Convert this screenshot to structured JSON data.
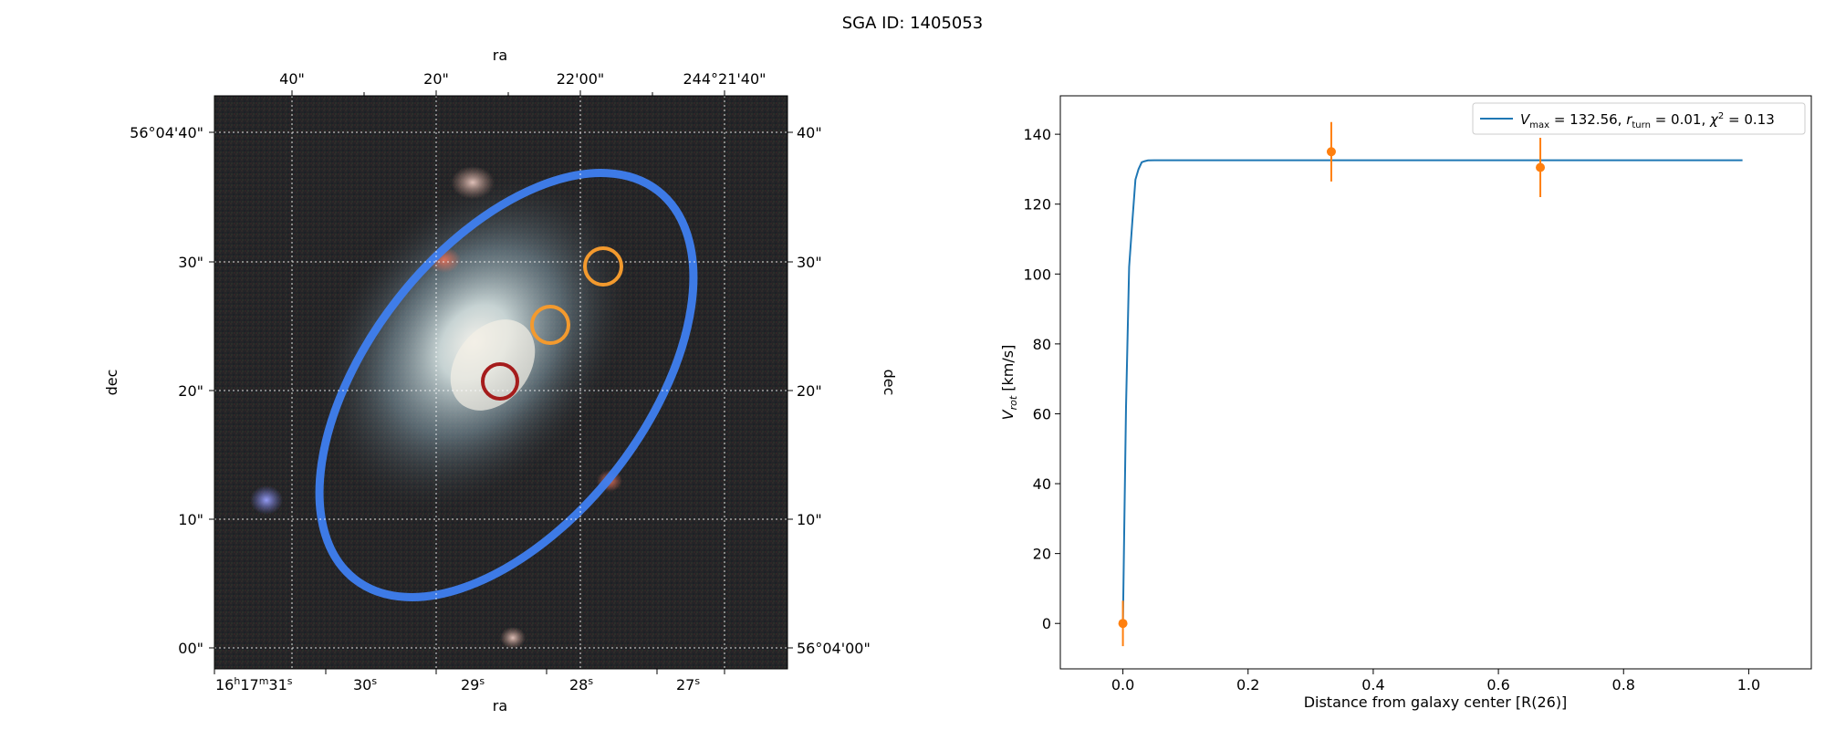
{
  "suptitle": "SGA ID: 1405053",
  "sky_panel": {
    "top_axis_label": "ra",
    "bottom_axis_label": "ra",
    "left_axis_label": "dec",
    "right_axis_label": "dec",
    "top_ticks": [
      "40\"",
      "20\"",
      "22'00\"",
      "244°21'40\""
    ],
    "bottom_ticks": [
      {
        "h": "16",
        "m": "17",
        "s": "31"
      },
      {
        "s": "30"
      },
      {
        "s": "29"
      },
      {
        "s": "28"
      },
      {
        "s": "27"
      }
    ],
    "left_ticks": [
      "56°04'40\"",
      "30\"",
      "20\"",
      "10\"",
      "00\""
    ],
    "right_ticks": [
      "40\"",
      "30\"",
      "20\"",
      "10\"",
      "56°04'00\""
    ],
    "colors": {
      "ellipse": "#3f7ff0",
      "center_circle": "#a51c1c",
      "fiber_circles": "#f39a2e"
    }
  },
  "chart_data": {
    "type": "line",
    "xlabel": "Distance from galaxy center [R(26)]",
    "ylabel": "V_rot [km/s]",
    "xlim": [
      -0.1,
      1.1
    ],
    "ylim": [
      -13,
      151
    ],
    "xticks": [
      0.0,
      0.2,
      0.4,
      0.6,
      0.8,
      1.0
    ],
    "xtick_labels": [
      "0.0",
      "0.2",
      "0.4",
      "0.6",
      "0.8",
      "1.0"
    ],
    "yticks": [
      0,
      20,
      40,
      60,
      80,
      100,
      120,
      140
    ],
    "ytick_labels": [
      "0",
      "20",
      "40",
      "60",
      "80",
      "100",
      "120",
      "140"
    ],
    "legend_position": "upper right",
    "series": [
      {
        "name": "V_max = 132.56, r_turn = 0.01, χ² = 0.13",
        "legend": {
          "vmax": "132.56",
          "rturn": "0.01",
          "chi2": "0.13"
        },
        "kind": "line",
        "color": "#1f77b4",
        "x": [
          0.0,
          0.002,
          0.005,
          0.01,
          0.015,
          0.02,
          0.025,
          0.03,
          0.035,
          0.04,
          0.05,
          0.1,
          0.2,
          0.4,
          0.6,
          0.8,
          0.99
        ],
        "y": [
          0.0,
          26,
          62,
          102,
          115,
          127,
          130,
          132,
          132.3,
          132.5,
          132.56,
          132.56,
          132.56,
          132.56,
          132.56,
          132.56,
          132.56
        ]
      },
      {
        "name": "",
        "kind": "errorbar",
        "color": "#ff7f0e",
        "x": [
          0.0,
          0.333,
          0.667
        ],
        "y": [
          0.0,
          135.0,
          130.5
        ],
        "yerr": [
          6.5,
          8.5,
          8.5
        ]
      }
    ]
  }
}
